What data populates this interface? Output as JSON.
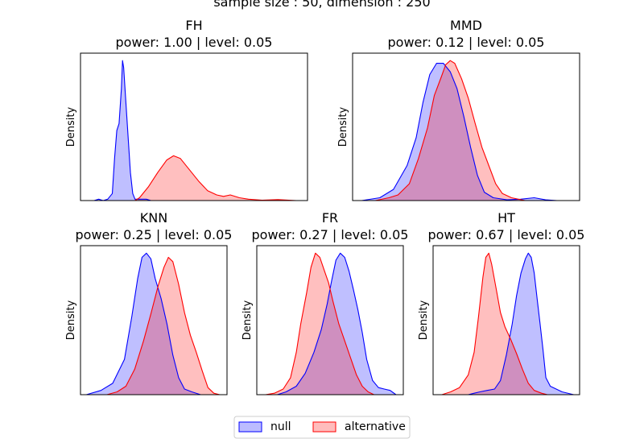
{
  "figure": {
    "suptitle": "sample size : 50, dimension : 250",
    "legend": {
      "placement": "bottom-center",
      "entries": [
        "null",
        "alternative"
      ]
    },
    "colors": {
      "null_line": "#0000ff",
      "null_fill": "#bcbcff",
      "alt_line": "#ff0000",
      "alt_fill": "#ffbcbc",
      "overlap_fill": "#cc8fbf"
    }
  },
  "chart_data": [
    {
      "type": "area",
      "title": "FH",
      "subtitle": "power: 1.00 | level: 0.05",
      "ylabel": "Density",
      "xlim": [
        0,
        1
      ],
      "ylim": [
        0,
        1
      ],
      "ticks": false,
      "series": [
        {
          "name": "null",
          "values": [
            [
              0.06,
              0
            ],
            [
              0.08,
              0.01
            ],
            [
              0.1,
              0
            ],
            [
              0.12,
              0.01
            ],
            [
              0.14,
              0.05
            ],
            [
              0.15,
              0.3
            ],
            [
              0.16,
              0.5
            ],
            [
              0.17,
              0.55
            ],
            [
              0.18,
              0.8
            ],
            [
              0.185,
              1.0
            ],
            [
              0.19,
              0.95
            ],
            [
              0.2,
              0.7
            ],
            [
              0.21,
              0.45
            ],
            [
              0.22,
              0.2
            ],
            [
              0.23,
              0.05
            ],
            [
              0.24,
              0.01
            ],
            [
              0.27,
              0.01
            ],
            [
              0.29,
              0.01
            ],
            [
              0.31,
              0
            ],
            [
              0.33,
              0
            ]
          ]
        },
        {
          "name": "alternative",
          "values": [
            [
              0.24,
              0
            ],
            [
              0.26,
              0.02
            ],
            [
              0.3,
              0.1
            ],
            [
              0.34,
              0.2
            ],
            [
              0.38,
              0.29
            ],
            [
              0.41,
              0.32
            ],
            [
              0.44,
              0.3
            ],
            [
              0.48,
              0.22
            ],
            [
              0.52,
              0.14
            ],
            [
              0.56,
              0.07
            ],
            [
              0.6,
              0.04
            ],
            [
              0.63,
              0.03
            ],
            [
              0.66,
              0.04
            ],
            [
              0.7,
              0.02
            ],
            [
              0.74,
              0.01
            ],
            [
              0.8,
              0.003
            ],
            [
              0.87,
              0.007
            ],
            [
              0.95,
              0
            ]
          ]
        }
      ]
    },
    {
      "type": "area",
      "title": "MMD",
      "subtitle": "power: 0.12 | level: 0.05",
      "ylabel": "Density",
      "xlim": [
        0,
        1
      ],
      "ylim": [
        0,
        1
      ],
      "ticks": false,
      "series": [
        {
          "name": "null",
          "values": [
            [
              0.04,
              0
            ],
            [
              0.12,
              0.02
            ],
            [
              0.18,
              0.08
            ],
            [
              0.24,
              0.25
            ],
            [
              0.28,
              0.45
            ],
            [
              0.31,
              0.7
            ],
            [
              0.34,
              0.9
            ],
            [
              0.37,
              0.98
            ],
            [
              0.4,
              0.98
            ],
            [
              0.43,
              0.92
            ],
            [
              0.46,
              0.8
            ],
            [
              0.49,
              0.6
            ],
            [
              0.52,
              0.38
            ],
            [
              0.55,
              0.18
            ],
            [
              0.58,
              0.06
            ],
            [
              0.62,
              0.02
            ],
            [
              0.68,
              0.005
            ],
            [
              0.74,
              0.01
            ],
            [
              0.8,
              0.02
            ],
            [
              0.85,
              0.005
            ],
            [
              0.9,
              0
            ]
          ]
        },
        {
          "name": "alternative",
          "values": [
            [
              0.1,
              0
            ],
            [
              0.16,
              0.02
            ],
            [
              0.2,
              0.04
            ],
            [
              0.25,
              0.12
            ],
            [
              0.29,
              0.3
            ],
            [
              0.33,
              0.52
            ],
            [
              0.36,
              0.75
            ],
            [
              0.39,
              0.88
            ],
            [
              0.41,
              0.97
            ],
            [
              0.43,
              1.0
            ],
            [
              0.45,
              0.98
            ],
            [
              0.48,
              0.87
            ],
            [
              0.51,
              0.73
            ],
            [
              0.54,
              0.55
            ],
            [
              0.57,
              0.38
            ],
            [
              0.6,
              0.25
            ],
            [
              0.63,
              0.12
            ],
            [
              0.66,
              0.05
            ],
            [
              0.7,
              0.02
            ],
            [
              0.76,
              0
            ]
          ]
        }
      ]
    },
    {
      "type": "area",
      "title": "KNN",
      "subtitle": "power: 0.25 | level: 0.05",
      "ylabel": "Density",
      "xlim": [
        0,
        1
      ],
      "ylim": [
        0,
        1
      ],
      "ticks": false,
      "series": [
        {
          "name": "null",
          "values": [
            [
              0.04,
              0
            ],
            [
              0.14,
              0.03
            ],
            [
              0.22,
              0.08
            ],
            [
              0.3,
              0.25
            ],
            [
              0.35,
              0.55
            ],
            [
              0.39,
              0.82
            ],
            [
              0.42,
              0.97
            ],
            [
              0.45,
              1.0
            ],
            [
              0.48,
              0.96
            ],
            [
              0.51,
              0.82
            ],
            [
              0.55,
              0.68
            ],
            [
              0.59,
              0.5
            ],
            [
              0.63,
              0.28
            ],
            [
              0.67,
              0.12
            ],
            [
              0.71,
              0.04
            ],
            [
              0.76,
              0.02
            ],
            [
              0.82,
              0
            ]
          ]
        },
        {
          "name": "alternative",
          "values": [
            [
              0.18,
              0
            ],
            [
              0.25,
              0.02
            ],
            [
              0.31,
              0.06
            ],
            [
              0.37,
              0.18
            ],
            [
              0.43,
              0.38
            ],
            [
              0.48,
              0.57
            ],
            [
              0.53,
              0.77
            ],
            [
              0.57,
              0.9
            ],
            [
              0.6,
              0.97
            ],
            [
              0.63,
              0.94
            ],
            [
              0.67,
              0.78
            ],
            [
              0.71,
              0.58
            ],
            [
              0.75,
              0.42
            ],
            [
              0.79,
              0.3
            ],
            [
              0.83,
              0.17
            ],
            [
              0.87,
              0.05
            ],
            [
              0.91,
              0.01
            ],
            [
              0.95,
              0
            ]
          ]
        }
      ]
    },
    {
      "type": "area",
      "title": "FR",
      "subtitle": "power: 0.27 | level: 0.05",
      "ylabel": "Density",
      "xlim": [
        0,
        1
      ],
      "ylim": [
        0,
        1
      ],
      "ticks": false,
      "series": [
        {
          "name": "null",
          "values": [
            [
              0.14,
              0
            ],
            [
              0.2,
              0.02
            ],
            [
              0.27,
              0.06
            ],
            [
              0.33,
              0.15
            ],
            [
              0.39,
              0.3
            ],
            [
              0.44,
              0.46
            ],
            [
              0.48,
              0.64
            ],
            [
              0.51,
              0.8
            ],
            [
              0.54,
              0.95
            ],
            [
              0.57,
              1.0
            ],
            [
              0.6,
              0.97
            ],
            [
              0.63,
              0.87
            ],
            [
              0.66,
              0.74
            ],
            [
              0.69,
              0.6
            ],
            [
              0.72,
              0.44
            ],
            [
              0.75,
              0.25
            ],
            [
              0.79,
              0.1
            ],
            [
              0.83,
              0.05
            ],
            [
              0.87,
              0.04
            ],
            [
              0.91,
              0.03
            ],
            [
              0.95,
              0
            ]
          ]
        },
        {
          "name": "alternative",
          "values": [
            [
              0.06,
              0
            ],
            [
              0.12,
              0.01
            ],
            [
              0.18,
              0.04
            ],
            [
              0.23,
              0.12
            ],
            [
              0.27,
              0.3
            ],
            [
              0.3,
              0.5
            ],
            [
              0.34,
              0.72
            ],
            [
              0.37,
              0.9
            ],
            [
              0.4,
              1.0
            ],
            [
              0.43,
              0.97
            ],
            [
              0.46,
              0.88
            ],
            [
              0.49,
              0.79
            ],
            [
              0.52,
              0.66
            ],
            [
              0.56,
              0.5
            ],
            [
              0.6,
              0.38
            ],
            [
              0.64,
              0.26
            ],
            [
              0.68,
              0.14
            ],
            [
              0.72,
              0.06
            ],
            [
              0.76,
              0.02
            ],
            [
              0.8,
              0
            ]
          ]
        }
      ]
    },
    {
      "type": "area",
      "title": "HT",
      "subtitle": "power: 0.67 | level: 0.05",
      "ylabel": "Density",
      "xlim": [
        0,
        1
      ],
      "ylim": [
        0,
        1
      ],
      "ticks": false,
      "series": [
        {
          "name": "null",
          "values": [
            [
              0.24,
              0
            ],
            [
              0.28,
              0.01
            ],
            [
              0.32,
              0.02
            ],
            [
              0.37,
              0.03
            ],
            [
              0.42,
              0.04
            ],
            [
              0.46,
              0.1
            ],
            [
              0.5,
              0.28
            ],
            [
              0.54,
              0.5
            ],
            [
              0.57,
              0.7
            ],
            [
              0.6,
              0.86
            ],
            [
              0.63,
              0.96
            ],
            [
              0.65,
              1.0
            ],
            [
              0.67,
              0.97
            ],
            [
              0.69,
              0.86
            ],
            [
              0.71,
              0.68
            ],
            [
              0.73,
              0.5
            ],
            [
              0.75,
              0.32
            ],
            [
              0.77,
              0.12
            ],
            [
              0.8,
              0.06
            ],
            [
              0.84,
              0.04
            ],
            [
              0.88,
              0.02
            ],
            [
              0.96,
              0
            ]
          ]
        },
        {
          "name": "alternative",
          "values": [
            [
              0.06,
              0
            ],
            [
              0.12,
              0.02
            ],
            [
              0.18,
              0.05
            ],
            [
              0.24,
              0.14
            ],
            [
              0.28,
              0.3
            ],
            [
              0.31,
              0.55
            ],
            [
              0.34,
              0.83
            ],
            [
              0.36,
              0.97
            ],
            [
              0.38,
              1.0
            ],
            [
              0.4,
              0.92
            ],
            [
              0.43,
              0.75
            ],
            [
              0.46,
              0.58
            ],
            [
              0.49,
              0.48
            ],
            [
              0.53,
              0.39
            ],
            [
              0.57,
              0.29
            ],
            [
              0.61,
              0.18
            ],
            [
              0.65,
              0.08
            ],
            [
              0.69,
              0.03
            ],
            [
              0.74,
              0.01
            ],
            [
              0.78,
              0
            ]
          ]
        }
      ]
    }
  ]
}
